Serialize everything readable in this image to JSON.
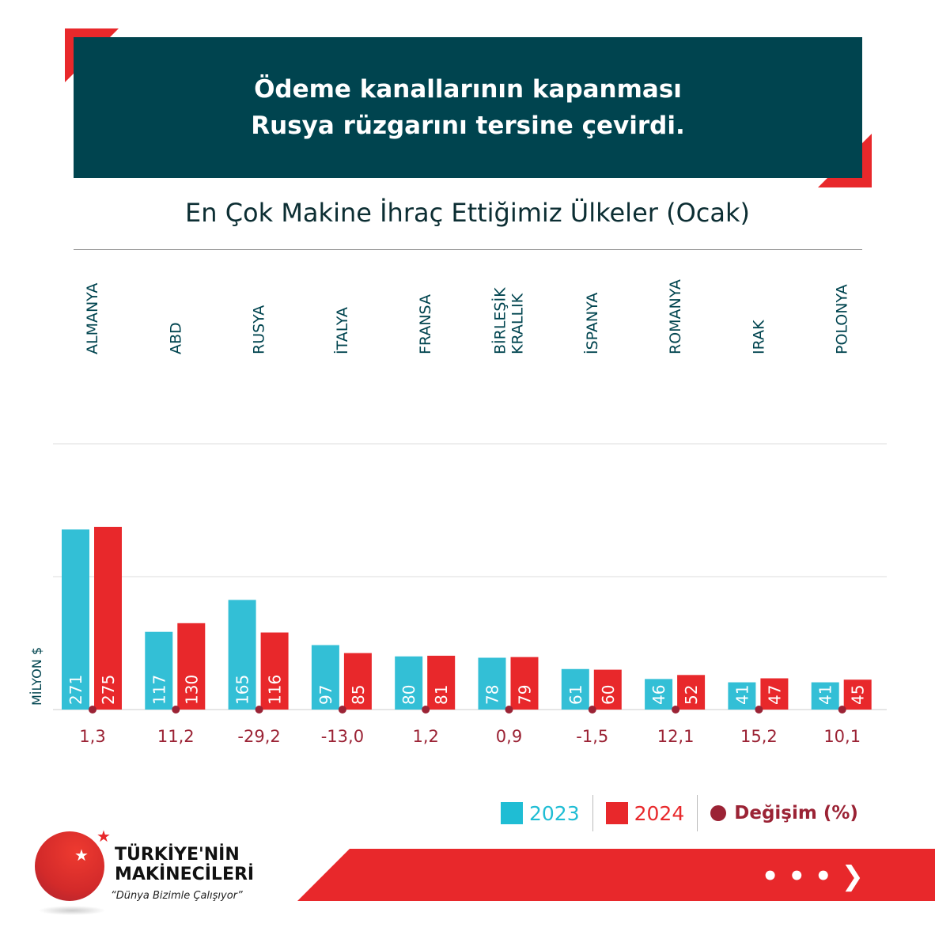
{
  "header": {
    "title_line1": "Ödeme kanallarının kapanması",
    "title_line2": "Rusya rüzgarını tersine çevirdi."
  },
  "colors": {
    "c2023": "#33bfd6",
    "c2024": "#e8282b",
    "change": "#9b2335",
    "dark": "#00444f"
  },
  "chart_data": {
    "type": "bar",
    "title": "En Çok Makine İhraç Ettiğimiz Ülkeler (Ocak)",
    "ylabel": "MİLYON $",
    "ylim": [
      0,
      400
    ],
    "gridlines": [
      200,
      400
    ],
    "categories": [
      "ALMANYA",
      "ABD",
      "RUSYA",
      "İTALYA",
      "FRANSA",
      "BİRLEŞİK KRALLIK",
      "İSPANYA",
      "ROMANYA",
      "IRAK",
      "POLONYA"
    ],
    "series": [
      {
        "name": "2023",
        "values": [
          271,
          117,
          165,
          97,
          80,
          78,
          61,
          46,
          41,
          41
        ]
      },
      {
        "name": "2024",
        "values": [
          275,
          130,
          116,
          85,
          81,
          79,
          60,
          52,
          47,
          45
        ]
      }
    ],
    "change_label": "Değişim (%)",
    "change": [
      "1,3",
      "11,2",
      "-29,2",
      "-13,0",
      "1,2",
      "0,9",
      "-1,5",
      "12,1",
      "15,2",
      "10,1"
    ]
  },
  "legend": {
    "l2023": "2023",
    "l2024": "2024",
    "change": "Değişim (%)"
  },
  "logo": {
    "line1": "TÜRKİYE'NİN",
    "line2": "MAKİNECİLERİ",
    "slogan": "“Dünya Bizimle Çalışıyor”"
  },
  "nav": {
    "next": "• • • ❯"
  }
}
